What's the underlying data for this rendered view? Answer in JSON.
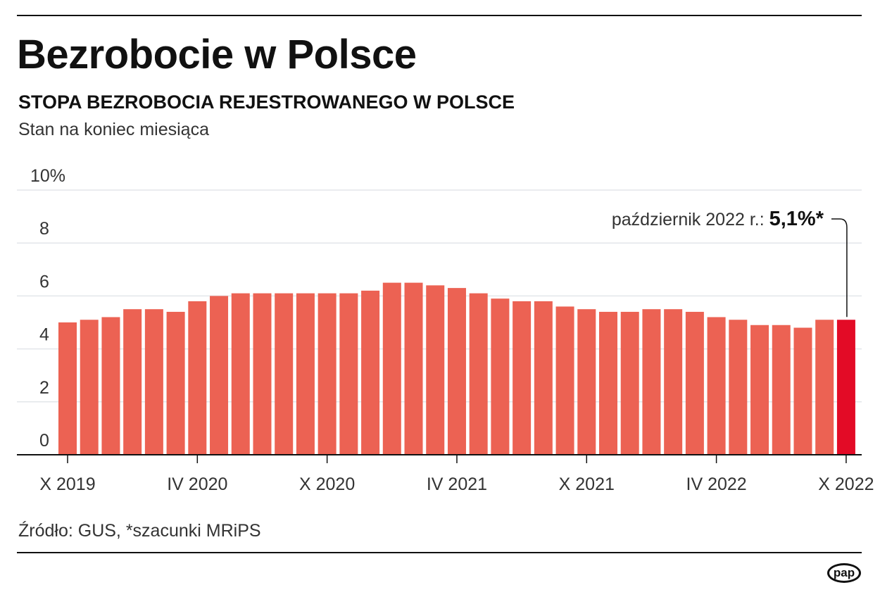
{
  "title": "Bezrobocie w Polsce",
  "subtitle": "STOPA BEZROBOCIA REJESTROWANEGO W POLSCE",
  "note": "Stan na koniec miesiąca",
  "source": "Źródło: GUS, *szacunki MRiPS",
  "logo": "pap",
  "chart_data": {
    "type": "bar",
    "ylim": [
      0,
      10
    ],
    "yticks": [
      0,
      2,
      4,
      6,
      8,
      10
    ],
    "ytick_labels": [
      "0",
      "2",
      "4",
      "6",
      "8",
      "10%"
    ],
    "grid": true,
    "x_tick_labels": [
      {
        "index": 0,
        "label": "X 2019"
      },
      {
        "index": 6,
        "label": "IV 2020"
      },
      {
        "index": 12,
        "label": "X 2020"
      },
      {
        "index": 18,
        "label": "IV 2021"
      },
      {
        "index": 24,
        "label": "X 2021"
      },
      {
        "index": 30,
        "label": "IV 2022"
      },
      {
        "index": 36,
        "label": "X 2022"
      }
    ],
    "categories": [
      "X 2019",
      "XI 2019",
      "XII 2019",
      "I 2020",
      "II 2020",
      "III 2020",
      "IV 2020",
      "V 2020",
      "VI 2020",
      "VII 2020",
      "VIII 2020",
      "IX 2020",
      "X 2020",
      "XI 2020",
      "XII 2020",
      "I 2021",
      "II 2021",
      "III 2021",
      "IV 2021",
      "V 2021",
      "VI 2021",
      "VII 2021",
      "VIII 2021",
      "IX 2021",
      "X 2021",
      "XI 2021",
      "XII 2021",
      "I 2022",
      "II 2022",
      "III 2022",
      "IV 2022",
      "V 2022",
      "VI 2022",
      "VII 2022",
      "VIII 2022",
      "IX 2022",
      "X 2022"
    ],
    "values": [
      5.0,
      5.1,
      5.2,
      5.5,
      5.5,
      5.4,
      5.8,
      6.0,
      6.1,
      6.1,
      6.1,
      6.1,
      6.1,
      6.1,
      6.2,
      6.5,
      6.5,
      6.4,
      6.3,
      6.1,
      5.9,
      5.8,
      5.8,
      5.6,
      5.5,
      5.4,
      5.4,
      5.5,
      5.5,
      5.4,
      5.2,
      5.1,
      4.9,
      4.9,
      4.8,
      5.1,
      5.1
    ],
    "annotation": {
      "label": "październik 2022 r.: ",
      "value": "5,1%*",
      "index": 36
    },
    "colors": {
      "bar": "#ec6253",
      "highlight": "#e30b26",
      "grid": "#e3e6ea",
      "axis": "#111111"
    }
  }
}
